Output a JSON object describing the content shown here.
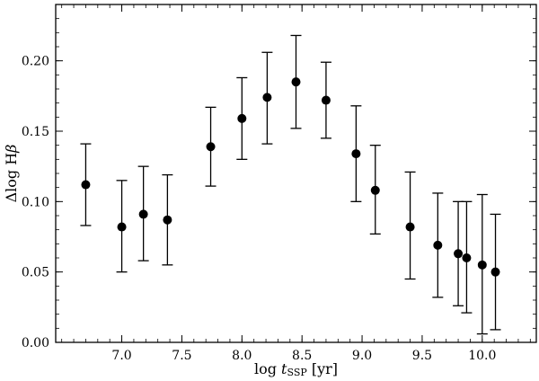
{
  "chart_data": {
    "type": "scatter",
    "xlabel_parts": {
      "pre": "log ",
      "var": "t",
      "sub": "SSP",
      "post": " [yr]"
    },
    "ylabel_parts": {
      "pre": "Δlog H",
      "var": "β"
    },
    "xlim": [
      6.45,
      10.45
    ],
    "ylim": [
      0.0,
      0.24
    ],
    "xticks": [
      7.0,
      7.5,
      8.0,
      8.5,
      9.0,
      9.5,
      10.0
    ],
    "xtick_labels": [
      "7.0",
      "7.5",
      "8.0",
      "8.5",
      "9.0",
      "9.5",
      "10.0"
    ],
    "yticks": [
      0.0,
      0.05,
      0.1,
      0.15,
      0.2
    ],
    "ytick_labels": [
      "0.00",
      "0.05",
      "0.10",
      "0.15",
      "0.20"
    ],
    "grid": false,
    "marker_color": "#000000",
    "points": [
      {
        "x": 6.7,
        "y": 0.112,
        "err_lo": 0.083,
        "err_hi": 0.141
      },
      {
        "x": 7.0,
        "y": 0.082,
        "err_lo": 0.05,
        "err_hi": 0.115
      },
      {
        "x": 7.18,
        "y": 0.091,
        "err_lo": 0.058,
        "err_hi": 0.125
      },
      {
        "x": 7.38,
        "y": 0.087,
        "err_lo": 0.055,
        "err_hi": 0.119
      },
      {
        "x": 7.74,
        "y": 0.139,
        "err_lo": 0.111,
        "err_hi": 0.167
      },
      {
        "x": 8.0,
        "y": 0.159,
        "err_lo": 0.13,
        "err_hi": 0.188
      },
      {
        "x": 8.21,
        "y": 0.174,
        "err_lo": 0.141,
        "err_hi": 0.206
      },
      {
        "x": 8.45,
        "y": 0.185,
        "err_lo": 0.152,
        "err_hi": 0.218
      },
      {
        "x": 8.7,
        "y": 0.172,
        "err_lo": 0.145,
        "err_hi": 0.199
      },
      {
        "x": 8.95,
        "y": 0.134,
        "err_lo": 0.1,
        "err_hi": 0.168
      },
      {
        "x": 9.11,
        "y": 0.108,
        "err_lo": 0.077,
        "err_hi": 0.14
      },
      {
        "x": 9.4,
        "y": 0.082,
        "err_lo": 0.045,
        "err_hi": 0.121
      },
      {
        "x": 9.63,
        "y": 0.069,
        "err_lo": 0.032,
        "err_hi": 0.106
      },
      {
        "x": 9.8,
        "y": 0.063,
        "err_lo": 0.026,
        "err_hi": 0.1
      },
      {
        "x": 9.87,
        "y": 0.06,
        "err_lo": 0.021,
        "err_hi": 0.1
      },
      {
        "x": 10.0,
        "y": 0.055,
        "err_lo": 0.006,
        "err_hi": 0.105
      },
      {
        "x": 10.11,
        "y": 0.05,
        "err_lo": 0.009,
        "err_hi": 0.091
      }
    ]
  }
}
